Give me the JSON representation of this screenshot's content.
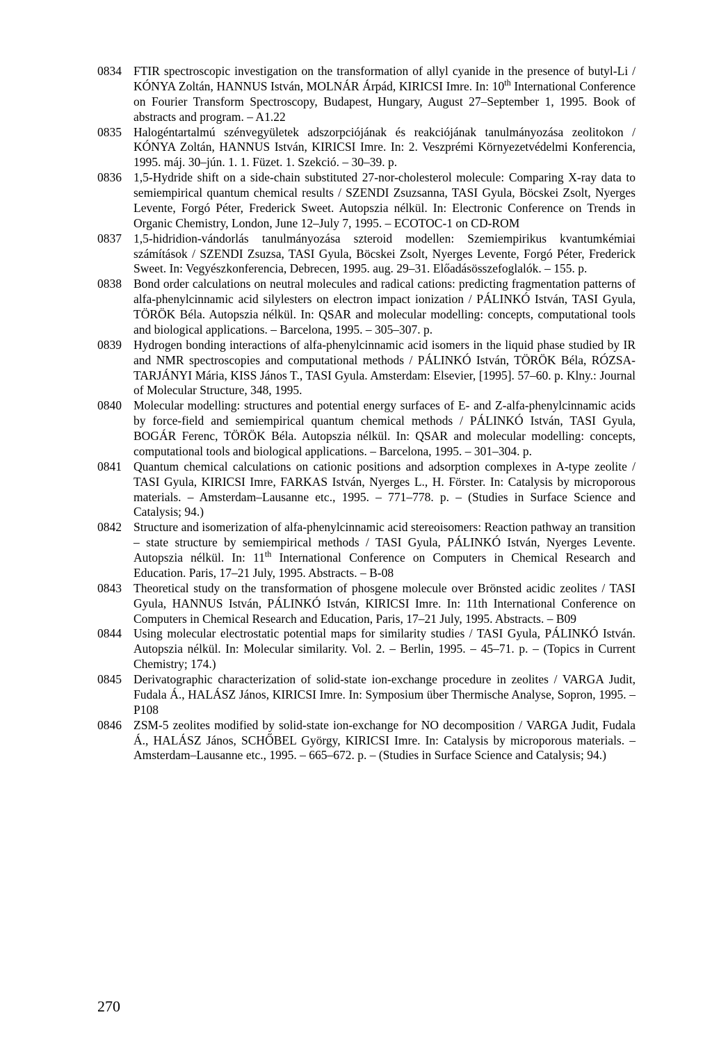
{
  "entries": [
    {
      "id": "0834",
      "text": "FTIR spectroscopic investigation on the transformation of allyl cyanide in the presence of butyl-Li / KÓNYA Zoltán, HANNUS István, MOLNÁR Árpád, KIRICSI Imre. In: 10<sup>th</sup> International Conference on Fourier Transform Spectroscopy, Budapest, Hungary, August 27–September 1, 1995. Book of abstracts and program. – A1.22"
    },
    {
      "id": "0835",
      "text": "Halogéntartalmú szénvegyületek adszorpciójának és reakciójának tanulmányozása zeolitokon / KÓNYA Zoltán, HANNUS István, KIRICSI Imre. In: 2. Veszprémi Környezetvédelmi Konferencia, 1995. máj. 30–jún. 1. 1. Füzet. 1. Szekció. – 30–39. p."
    },
    {
      "id": "0836",
      "text": "1,5-Hydride shift on a side-chain substituted 27-nor-cholesterol molecule: Comparing X-ray data to semiempirical quantum chemical results / SZENDI Zsuzsanna, TASI Gyula, Böcskei Zsolt, Nyerges Levente, Forgó Péter, Frederick Sweet. Autopszia nélkül. In: Electronic Conference on Trends in Organic Chemistry, London, June 12–July 7, 1995. – ECOTOC-1 on CD-ROM"
    },
    {
      "id": "0837",
      "text": "1,5-hidridion-vándorlás tanulmányozása szteroid modellen: Szemiempirikus kvantumkémiai számítások / SZENDI Zsuzsa, TASI Gyula, Böcskei Zsolt, Nyerges Levente, Forgó Péter, Frederick Sweet. In: Vegyészkonferencia, Debrecen, 1995. aug. 29–31. Előadásösszefoglalók. – 155. p."
    },
    {
      "id": "0838",
      "text": "Bond order calculations on neutral molecules and radical cations: predicting fragmentation patterns of alfa-phenylcinnamic acid silylesters on electron impact ionization / PÁLINKÓ István, TASI Gyula, TÖRÖK Béla. Autopszia nélkül. In: QSAR and molecular modelling: concepts, computational tools and biological applications. – Barcelona, 1995. – 305–307. p."
    },
    {
      "id": "0839",
      "text": "Hydrogen bonding interactions of alfa-phenylcinnamic acid isomers in the liquid phase studied by IR and NMR spectroscopies and computational methods / PÁLINKÓ István, TÖRÖK Béla, RÓZSA-TARJÁNYI Mária, KISS János T., TASI Gyula. Amsterdam: Elsevier, [1995]. 57–60. p. Klny.: Journal of Molecular Structure, 348, 1995."
    },
    {
      "id": "0840",
      "text": "Molecular modelling: structures and potential energy surfaces of E- and Z-alfa-phenylcinnamic acids by force-field and semiempirical quantum chemical methods / PÁLINKÓ István, TASI Gyula, BOGÁR Ferenc, TÖRÖK Béla. Autopszia nélkül. In: QSAR and molecular modelling: concepts, computational tools and biological applications. – Barcelona, 1995. – 301–304. p."
    },
    {
      "id": "0841",
      "text": "Quantum chemical calculations on cationic positions and adsorption complexes in A-type zeolite / TASI Gyula, KIRICSI Imre, FARKAS István, Nyerges L., H. Förster. In: Catalysis by microporous materials. – Amsterdam–Lausanne etc., 1995. – 771–778. p. – (Studies in Surface Science and Catalysis; 94.)"
    },
    {
      "id": "0842",
      "text": "Structure and isomerization of alfa-phenylcinnamic acid stereoisomers: Reaction pathway an transition – state structure by semiempirical methods / TASI Gyula, PÁLINKÓ István, Nyerges Levente. Autopszia nélkül. In: 11<sup>th</sup> International Conference on Computers in Chemical Research and Education. Paris, 17–21 July, 1995. Abstracts. – B-08"
    },
    {
      "id": "0843",
      "text": "Theoretical study on the transformation of phosgene molecule over Brönsted acidic zeolites / TASI Gyula, HANNUS István, PÁLINKÓ István, KIRICSI Imre. In: 11th International Conference on Computers in Chemical Research and Education, Paris, 17–21 July, 1995. Abstracts. – B09"
    },
    {
      "id": "0844",
      "text": "Using molecular electrostatic potential maps for similarity studies / TASI Gyula, PÁLINKÓ István. Autopszia nélkül. In: Molecular similarity. Vol. 2. – Berlin, 1995. – 45–71. p. – (Topics in Current Chemistry; 174.)"
    },
    {
      "id": "0845",
      "text": "Derivatographic characterization of solid-state ion-exchange procedure in zeolites / VARGA Judit, Fudala Á., HALÁSZ János, KIRICSI Imre. In: Symposium über Thermische Analyse, Sopron, 1995. – P108"
    },
    {
      "id": "0846",
      "text": "ZSM-5 zeolites modified by solid-state ion-exchange for NO decomposition / VARGA Judit, Fudala Á., HALÁSZ János, SCHŐBEL György, KIRICSI Imre. In: Catalysis by microporous materials. – Amsterdam–Lausanne etc., 1995. – 665–672. p. – (Studies in Surface Science and Catalysis; 94.)"
    }
  ],
  "page_number": "270"
}
